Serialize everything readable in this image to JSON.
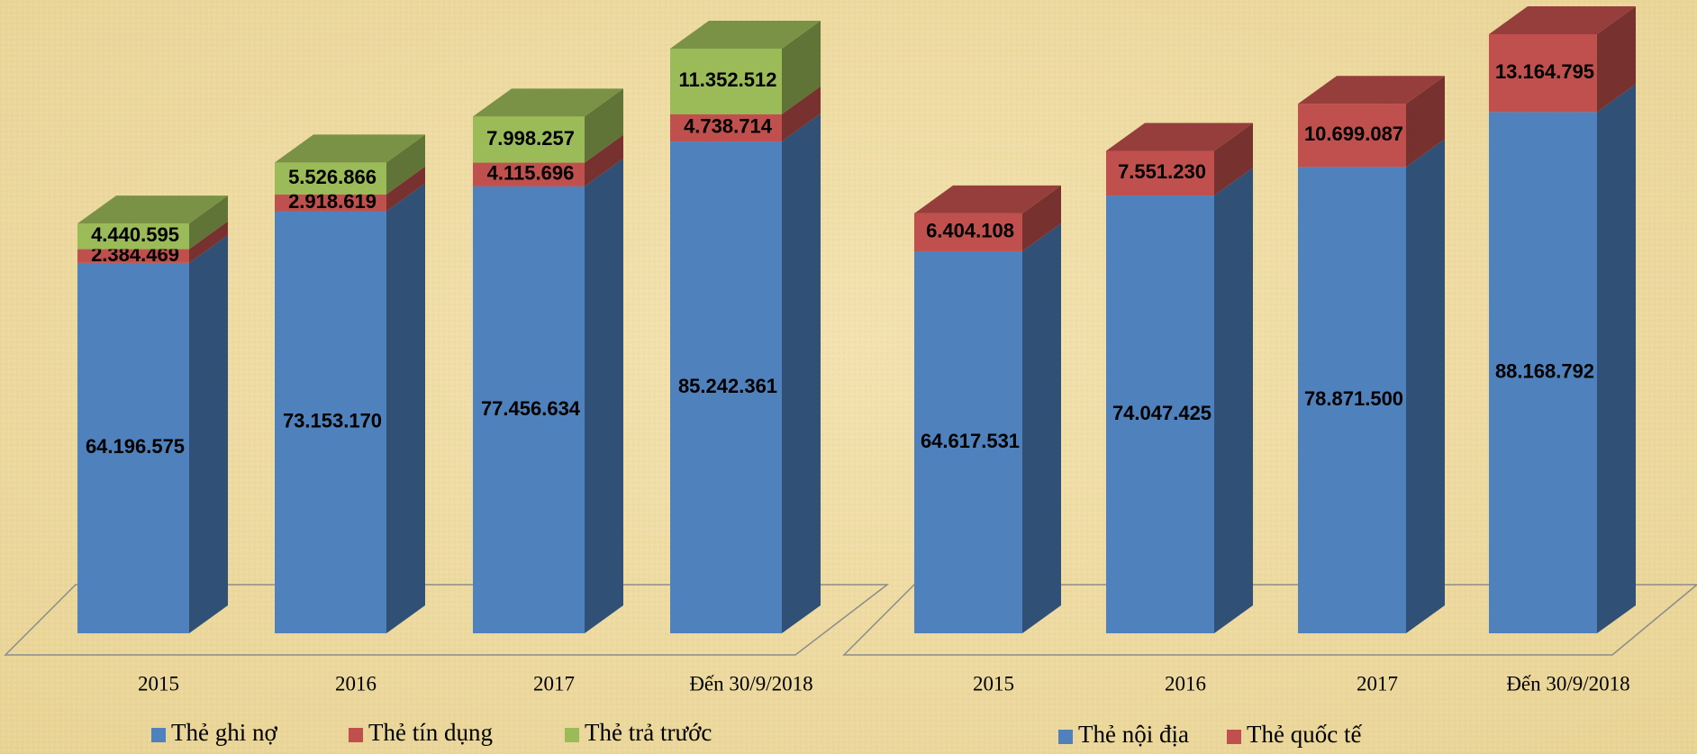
{
  "chart_data": [
    {
      "type": "bar",
      "stacked": true,
      "three_d": true,
      "categories": [
        "2015",
        "2016",
        "2017",
        "Đến 30/9/2018"
      ],
      "series": [
        {
          "name": "Thẻ ghi nợ",
          "color": "#4f81bd",
          "values": [
            64196575,
            73153170,
            77456634,
            85242361
          ],
          "value_labels": [
            "64.196.575",
            "73.153.170",
            "77.456.634",
            "85.242.361"
          ]
        },
        {
          "name": "Thẻ tín dụng",
          "color": "#c0504d",
          "values": [
            2384469,
            2918619,
            4115696,
            4738714
          ],
          "value_labels": [
            "2.384.469",
            "2.918.619",
            "4.115.696",
            "4.738.714"
          ]
        },
        {
          "name": "Thẻ trả trước",
          "color": "#9bbb59",
          "values": [
            4440595,
            5526866,
            7998257,
            11352512
          ],
          "value_labels": [
            "4.440.595",
            "5.526.866",
            "7.998.257",
            "11.352.512"
          ]
        }
      ]
    },
    {
      "type": "bar",
      "stacked": true,
      "three_d": true,
      "categories": [
        "2015",
        "2016",
        "2017",
        "Đến 30/9/2018"
      ],
      "series": [
        {
          "name": "Thẻ nội địa",
          "color": "#4f81bd",
          "values": [
            64617531,
            74047425,
            78871500,
            88168792
          ],
          "value_labels": [
            "64.617.531",
            "74.047.425",
            "78.871.500",
            "88.168.792"
          ]
        },
        {
          "name": "Thẻ quốc tế",
          "color": "#c0504d",
          "values": [
            6404108,
            7551230,
            10699087,
            13164795
          ],
          "value_labels": [
            "6.404.108",
            "7.551.230",
            "10.699.087",
            "13.164.795"
          ]
        }
      ]
    }
  ]
}
